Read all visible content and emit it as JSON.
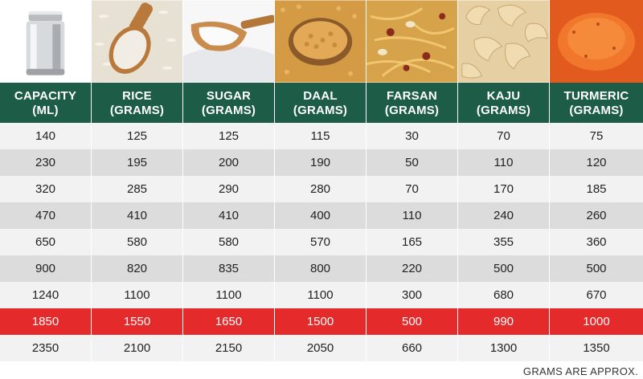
{
  "images": [
    {
      "name": "steel-jar-image",
      "subject": "steel jar"
    },
    {
      "name": "rice-image",
      "subject": "rice"
    },
    {
      "name": "sugar-image",
      "subject": "sugar"
    },
    {
      "name": "daal-image",
      "subject": "daal"
    },
    {
      "name": "farsan-image",
      "subject": "farsan"
    },
    {
      "name": "kaju-image",
      "subject": "kaju"
    },
    {
      "name": "turmeric-image",
      "subject": "turmeric"
    }
  ],
  "headers": [
    {
      "line1": "CAPACITY",
      "line2": "(ML)"
    },
    {
      "line1": "RICE",
      "line2": "(GRAMS)"
    },
    {
      "line1": "SUGAR",
      "line2": "(GRAMS)"
    },
    {
      "line1": "DAAL",
      "line2": "(GRAMS)"
    },
    {
      "line1": "FARSAN",
      "line2": "(GRAMS)"
    },
    {
      "line1": "KAJU",
      "line2": "(GRAMS)"
    },
    {
      "line1": "TURMERIC",
      "line2": "(GRAMS)"
    }
  ],
  "rows": [
    [
      "140",
      "125",
      "125",
      "115",
      "30",
      "70",
      "75"
    ],
    [
      "230",
      "195",
      "200",
      "190",
      "50",
      "110",
      "120"
    ],
    [
      "320",
      "285",
      "290",
      "280",
      "70",
      "170",
      "185"
    ],
    [
      "470",
      "410",
      "410",
      "400",
      "110",
      "240",
      "260"
    ],
    [
      "650",
      "580",
      "580",
      "570",
      "165",
      "355",
      "360"
    ],
    [
      "900",
      "820",
      "835",
      "800",
      "220",
      "500",
      "500"
    ],
    [
      "1240",
      "1100",
      "1100",
      "1100",
      "300",
      "680",
      "670"
    ],
    [
      "1850",
      "1550",
      "1650",
      "1500",
      "500",
      "990",
      "1000"
    ],
    [
      "2350",
      "2100",
      "2150",
      "2050",
      "660",
      "1300",
      "1350"
    ]
  ],
  "highlight_row_index": 7,
  "colors": {
    "header_bg": "#1d5d47",
    "highlight_bg": "#e42a2a",
    "alt_row_bg": "#dcdcdc",
    "row_bg": "#f2f2f2"
  },
  "footnote": "GRAMS ARE APPROX."
}
